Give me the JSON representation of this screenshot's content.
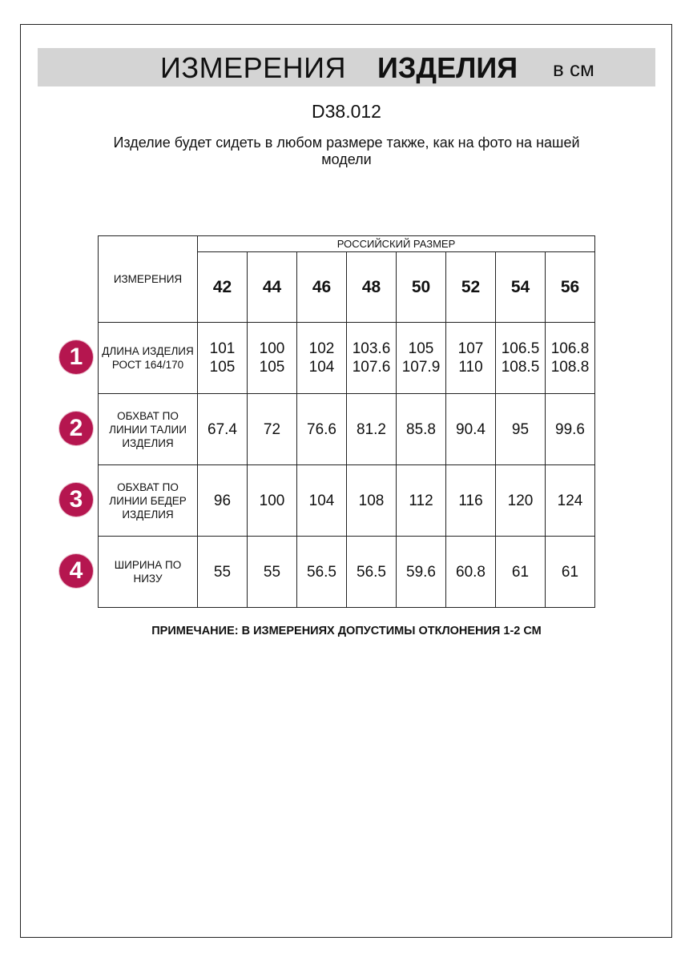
{
  "header": {
    "title_light": "ИЗМЕРЕНИЯ",
    "title_bold": "ИЗДЕЛИЯ",
    "unit": "в см"
  },
  "product_code": "D38.012",
  "subtitle": "Изделие будет сидеть в любом размере также, как на фото на нашей модели",
  "badge_color": "#b5164f",
  "table": {
    "corner_label": "ИЗМЕРЕНИЯ",
    "group_label": "РОССИЙСКИЙ РАЗМЕР",
    "sizes": [
      "42",
      "44",
      "46",
      "48",
      "50",
      "52",
      "54",
      "56"
    ],
    "rows": [
      {
        "num": "1",
        "label": "ДЛИНА ИЗДЕЛИЯ РОСТ 164/170",
        "values": [
          "101\n105",
          "100\n105",
          "102\n104",
          "103.6\n107.6",
          "105\n107.9",
          "107\n110",
          "106.5\n108.5",
          "106.8\n108.8"
        ]
      },
      {
        "num": "2",
        "label": "ОБХВАТ ПО ЛИНИИ ТАЛИИ ИЗДЕЛИЯ",
        "values": [
          "67.4",
          "72",
          "76.6",
          "81.2",
          "85.8",
          "90.4",
          "95",
          "99.6"
        ]
      },
      {
        "num": "3",
        "label": "ОБХВАТ ПО ЛИНИИ БЕДЕР ИЗДЕЛИЯ",
        "values": [
          "96",
          "100",
          "104",
          "108",
          "112",
          "116",
          "120",
          "124"
        ]
      },
      {
        "num": "4",
        "label": "ШИРИНА ПО НИЗУ",
        "values": [
          "55",
          "55",
          "56.5",
          "56.5",
          "59.6",
          "60.8",
          "61",
          "61"
        ]
      }
    ]
  },
  "note": "ПРИМЕЧАНИЕ: В ИЗМЕРЕНИЯХ ДОПУСТИМЫ ОТКЛОНЕНИЯ 1-2 СМ"
}
